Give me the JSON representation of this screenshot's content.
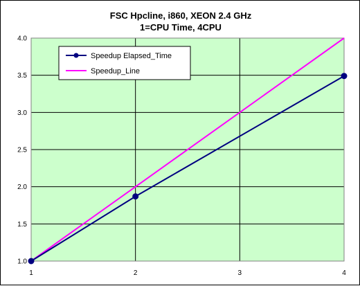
{
  "chart_data": {
    "type": "line",
    "title_lines": [
      "FSC Hpcline, i860, XEON 2.4 GHz",
      "1=CPU Time, 4CPU"
    ],
    "xlabel": "",
    "ylabel": "",
    "x": [
      1,
      2,
      4
    ],
    "xlim": [
      1,
      4
    ],
    "ylim": [
      1.0,
      4.0
    ],
    "x_ticks": [
      1,
      2,
      3,
      4
    ],
    "x_tick_labels": [
      "1",
      "2",
      "3",
      "4"
    ],
    "y_ticks": [
      1.0,
      1.5,
      2.0,
      2.5,
      3.0,
      3.5,
      4.0
    ],
    "y_tick_labels": [
      "1.0",
      "1.5",
      "2.0",
      "2.5",
      "3.0",
      "3.5",
      "4.0"
    ],
    "grid": true,
    "legend_position": "top-left",
    "plot_background": "#ccffcc",
    "series": [
      {
        "name": "Speedup Elapsed_Time",
        "values": [
          1.0,
          1.87,
          3.49
        ],
        "color": "#000080",
        "marker": "circle"
      },
      {
        "name": "Speedup_Line",
        "values": [
          1.0,
          2.0,
          4.0
        ],
        "color": "#ff00ff",
        "marker": "none"
      }
    ]
  }
}
